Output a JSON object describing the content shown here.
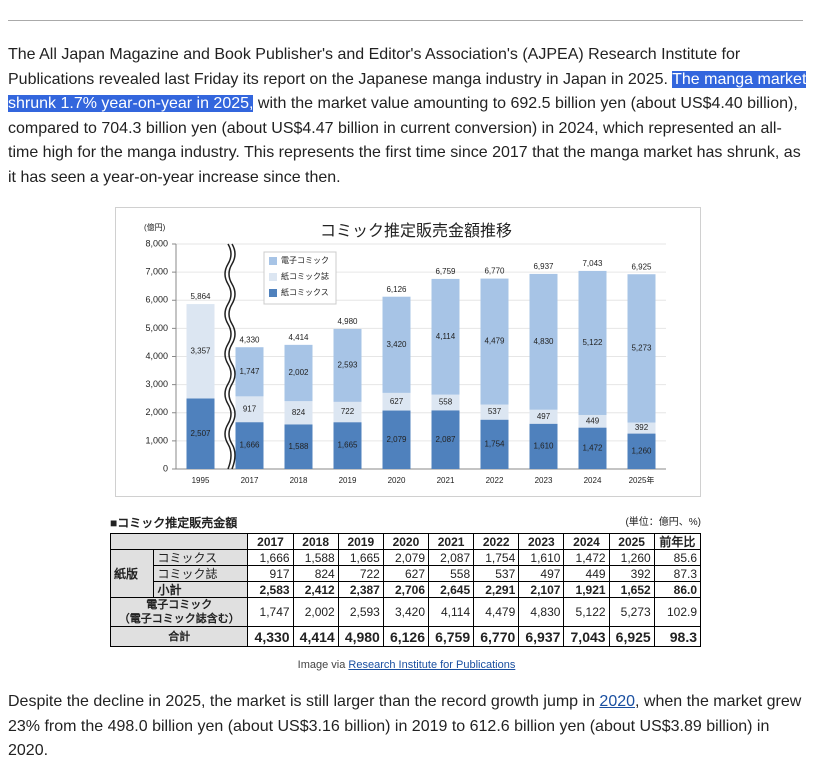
{
  "article": {
    "p1_before": "The All Japan Magazine and Book Publisher's and Editor's Association's (AJPEA) Research Institute for Publications revealed last Friday its report on the Japanese manga industry in Japan in 2025. ",
    "p1_highlight": "The manga market shrunk 1.7% year-on-year in 2025,",
    "p1_after": " with the market value amounting to 692.5 billion yen (about US$4.40 billion), compared to 704.3 billion yen (about US$4.47 billion in current conversion) in 2024, which represented an all-time high for the manga industry. This represents the first time since 2017 that the manga market has shrunk, as it has seen a year-on-year increase since then.",
    "caption_prefix": "Image via ",
    "caption_link": "Research Institute for Publications",
    "p2_before": "Despite the decline in 2025, the market is still larger than the record growth jump in ",
    "p2_link": "2020",
    "p2_after": ", when the market grew 23% from the 498.0 billion yen (about US$3.16 billion) in 2019 to 612.6 billion yen (about US$3.89 billion) in 2020."
  },
  "chart_data": {
    "type": "bar",
    "stacked": true,
    "title": "コミック推定販売金額推移",
    "y_unit": "(億円)",
    "categories": [
      "1995",
      "2017",
      "2018",
      "2019",
      "2020",
      "2021",
      "2022",
      "2023",
      "2024",
      "2025年"
    ],
    "series": [
      {
        "name": "紙コミックス",
        "color": "#4f81bd",
        "values": [
          2507,
          1666,
          1588,
          1665,
          2079,
          2087,
          1754,
          1610,
          1472,
          1260
        ]
      },
      {
        "name": "紙コミック誌",
        "color": "#dce6f2",
        "values": [
          3357,
          917,
          824,
          722,
          627,
          558,
          537,
          497,
          449,
          392
        ]
      },
      {
        "name": "電子コミック",
        "color": "#a7c4e6",
        "values": [
          null,
          1747,
          2002,
          2593,
          3420,
          4114,
          4479,
          4830,
          5122,
          5273
        ]
      }
    ],
    "totals": [
      5864,
      4330,
      4414,
      4980,
      6126,
      6759,
      6770,
      6937,
      7043,
      6925
    ],
    "totals_labels": [
      "5,864",
      "4,330",
      "4,414",
      "4,980",
      "6,126",
      "6,759",
      "6,770",
      "6,937",
      "7,043",
      "6,925"
    ],
    "value_labels": [
      [
        "2,507",
        "1,666",
        "1,588",
        "1,665",
        "2,079",
        "2,087",
        "1,754",
        "1,610",
        "1,472",
        "1,260"
      ],
      [
        "3,357",
        "917",
        "824",
        "722",
        "627",
        "558",
        "537",
        "497",
        "449",
        "392"
      ],
      [
        null,
        "1,747",
        "2,002",
        "2,593",
        "3,420",
        "4,114",
        "4,479",
        "4,830",
        "5,122",
        "5,273"
      ]
    ],
    "ylim": [
      0,
      8000
    ],
    "yticks": [
      0,
      {
        "value": 1000,
        "label": "1,000"
      },
      {
        "value": 2000,
        "label": "2,000"
      },
      {
        "value": 3000,
        "label": "3,000"
      },
      {
        "value": 4000,
        "label": "4,000"
      },
      {
        "value": 5000,
        "label": "5,000"
      },
      {
        "value": 6000,
        "label": "6,000"
      },
      {
        "value": 7000,
        "label": "7,000"
      },
      {
        "value": 8000,
        "label": "8,000"
      }
    ],
    "grid": true,
    "legend": "upper-left"
  },
  "table": {
    "title": "■コミック推定販売金額",
    "unit": "(単位：億円、%)",
    "header": [
      "2017",
      "2018",
      "2019",
      "2020",
      "2021",
      "2022",
      "2023",
      "2024",
      "2025",
      "前年比"
    ],
    "group": "紙版",
    "rows": [
      {
        "label": [
          "コミックス"
        ],
        "cells": [
          "1,666",
          "1,588",
          "1,665",
          "2,079",
          "2,087",
          "1,754",
          "1,610",
          "1,472",
          "1,260",
          "85.6"
        ]
      },
      {
        "label": [
          "コミック誌"
        ],
        "cells": [
          "917",
          "824",
          "722",
          "627",
          "558",
          "537",
          "497",
          "449",
          "392",
          "87.3"
        ]
      },
      {
        "label": [
          "小計"
        ],
        "cells": [
          "2,583",
          "2,412",
          "2,387",
          "2,706",
          "2,645",
          "2,291",
          "2,107",
          "1,921",
          "1,652",
          "86.0"
        ]
      },
      {
        "label": [
          "電子コミック",
          "（電子コミック誌含む）"
        ],
        "cells": [
          "1,747",
          "2,002",
          "2,593",
          "3,420",
          "4,114",
          "4,479",
          "4,830",
          "5,122",
          "5,273",
          "102.9"
        ]
      },
      {
        "label": [
          "合計"
        ],
        "cells": [
          "4,330",
          "4,414",
          "4,980",
          "6,126",
          "6,759",
          "6,770",
          "6,937",
          "7,043",
          "6,925",
          "98.3"
        ]
      }
    ]
  }
}
